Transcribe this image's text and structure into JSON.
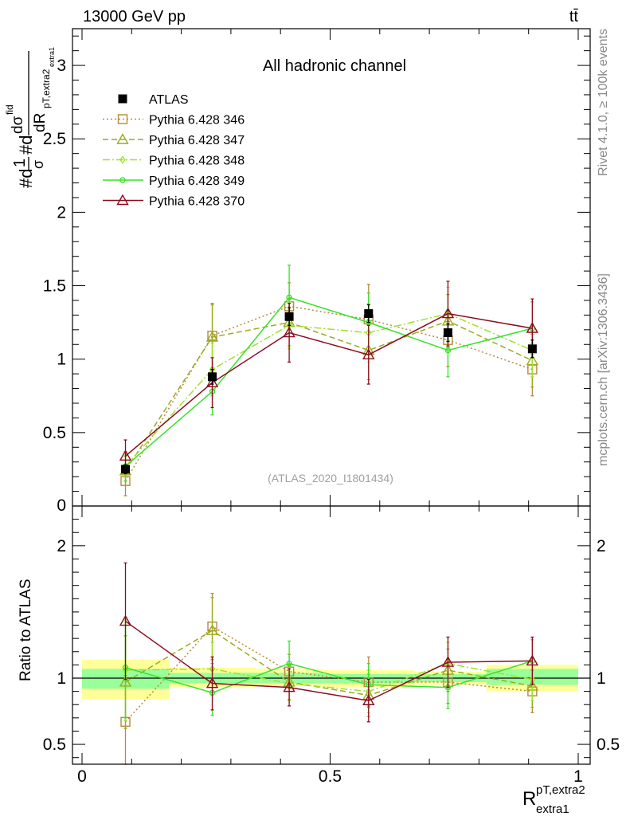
{
  "header": {
    "energy": "13000 GeV pp",
    "process": "tt̄"
  },
  "sidebar": {
    "rivet": "Rivet 4.1.0, ≥ 100k events",
    "source": "mcplots.cern.ch [arXiv:1306.3436]"
  },
  "colors": {
    "atlas": "#000000",
    "p346": "#b58a3c",
    "p347": "#9aaa1e",
    "p348": "#a0e030",
    "p349": "#38e22a",
    "p370": "#8b0a1e",
    "band_yellow": "#ffff99",
    "band_green": "#99ff99"
  },
  "chart_data": [
    {
      "type": "scatter",
      "title": "All hadronic channel",
      "watermark": "(ATLAS_2020_I1801434)",
      "ylabel_main": "#d",
      "ylabel_frac": {
        "num": "1",
        "den": "σ"
      },
      "ylabel_mid": "#d",
      "ylabel_d2": {
        "num": "dσ",
        "sup": "fid",
        "sub": "pT,extra2",
        "subsub": "extra1",
        "den": "dR"
      },
      "xlabel_main": "R",
      "xlabel_sup": "pT,extra2",
      "xlabel_sub": "extra1",
      "xlim": [
        0,
        1
      ],
      "ylim": [
        0,
        3.25
      ],
      "x_ticks": [
        "0",
        "0.5",
        "1"
      ],
      "y_ticks": [
        "0.5",
        "1",
        "1.5",
        "2",
        "2.5",
        "3"
      ],
      "x": [
        0.0875,
        0.2625,
        0.4175,
        0.5775,
        0.7375,
        0.9075
      ],
      "data": {
        "name": "ATLAS",
        "values": [
          0.25,
          0.88,
          1.29,
          1.31,
          1.18,
          1.07
        ],
        "errors": [
          0.03,
          0.05,
          0.06,
          0.06,
          0.06,
          0.06
        ]
      },
      "series": [
        {
          "name": "Pythia 6.428 346",
          "color_key": "p346",
          "marker": "square",
          "dash": "2,3",
          "values": [
            0.17,
            1.16,
            1.36,
            1.27,
            1.13,
            0.93
          ],
          "errors": [
            0.1,
            0.22,
            0.16,
            0.24,
            0.18,
            0.18
          ]
        },
        {
          "name": "Pythia 6.428 347",
          "color_key": "p347",
          "marker": "triangle",
          "dash": "7,4",
          "values": [
            0.24,
            1.15,
            1.25,
            1.06,
            1.26,
            0.99
          ],
          "errors": [
            0.1,
            0.22,
            0.16,
            0.2,
            0.18,
            0.18
          ]
        },
        {
          "name": "Pythia 6.428 348",
          "color_key": "p348",
          "marker": "diamond",
          "dash": "9,3,2,3",
          "values": [
            0.27,
            0.93,
            1.23,
            1.18,
            1.31,
            1.06
          ],
          "errors": [
            0.1,
            0.18,
            0.16,
            0.2,
            0.18,
            0.18
          ]
        },
        {
          "name": "Pythia 6.428 349",
          "color_key": "p349",
          "marker": "circle",
          "dash": "",
          "values": [
            0.27,
            0.78,
            1.42,
            1.25,
            1.06,
            1.21
          ],
          "errors": [
            0.1,
            0.16,
            0.22,
            0.2,
            0.18,
            0.18
          ]
        },
        {
          "name": "Pythia 6.428 370",
          "color_key": "p370",
          "marker": "triangle",
          "dash": "",
          "values": [
            0.34,
            0.84,
            1.18,
            1.03,
            1.31,
            1.21
          ],
          "errors": [
            0.11,
            0.17,
            0.2,
            0.2,
            0.22,
            0.2
          ]
        }
      ]
    },
    {
      "type": "scatter",
      "ylabel": "Ratio to ATLAS",
      "ylim": [
        0.35,
        2.3
      ],
      "y_ticks": [
        "0.5",
        "1",
        "2"
      ],
      "bins": [
        [
          0,
          0.175
        ],
        [
          0.175,
          0.35
        ],
        [
          0.35,
          0.485
        ],
        [
          0.485,
          0.67
        ],
        [
          0.67,
          0.815
        ],
        [
          0.815,
          1
        ]
      ],
      "band_yellow": [
        [
          0.84,
          1.14
        ],
        [
          0.93,
          1.08
        ],
        [
          0.94,
          1.07
        ],
        [
          0.93,
          1.06
        ],
        [
          0.95,
          1.05
        ],
        [
          0.9,
          1.1
        ]
      ],
      "band_green": [
        [
          0.92,
          1.07
        ],
        [
          0.96,
          1.04
        ],
        [
          0.96,
          1.04
        ],
        [
          0.96,
          1.03
        ],
        [
          0.97,
          1.03
        ],
        [
          0.95,
          1.07
        ]
      ],
      "ratios": [
        {
          "name": "Pythia 6.428 346",
          "values": [
            0.67,
            1.39,
            1.05,
            0.97,
            0.97,
            0.9
          ],
          "errors": [
            0.35,
            0.25,
            0.13,
            0.19,
            0.16,
            0.16
          ]
        },
        {
          "name": "Pythia 6.428 347",
          "values": [
            0.97,
            1.36,
            0.97,
            0.87,
            1.06,
            0.94
          ],
          "errors": [
            0.35,
            0.25,
            0.13,
            0.16,
            0.16,
            0.16
          ]
        },
        {
          "name": "Pythia 6.428 348",
          "values": [
            1.06,
            1.07,
            0.96,
            0.9,
            1.11,
            0.99
          ],
          "errors": [
            0.38,
            0.2,
            0.13,
            0.16,
            0.16,
            0.16
          ]
        },
        {
          "name": "Pythia 6.428 349",
          "values": [
            1.08,
            0.89,
            1.11,
            0.95,
            0.93,
            1.13
          ],
          "errors": [
            0.38,
            0.17,
            0.17,
            0.16,
            0.16,
            0.16
          ]
        },
        {
          "name": "Pythia 6.428 370",
          "values": [
            1.43,
            0.96,
            0.93,
            0.83,
            1.12,
            1.13
          ],
          "errors": [
            0.44,
            0.2,
            0.14,
            0.16,
            0.19,
            0.18
          ]
        }
      ]
    }
  ]
}
